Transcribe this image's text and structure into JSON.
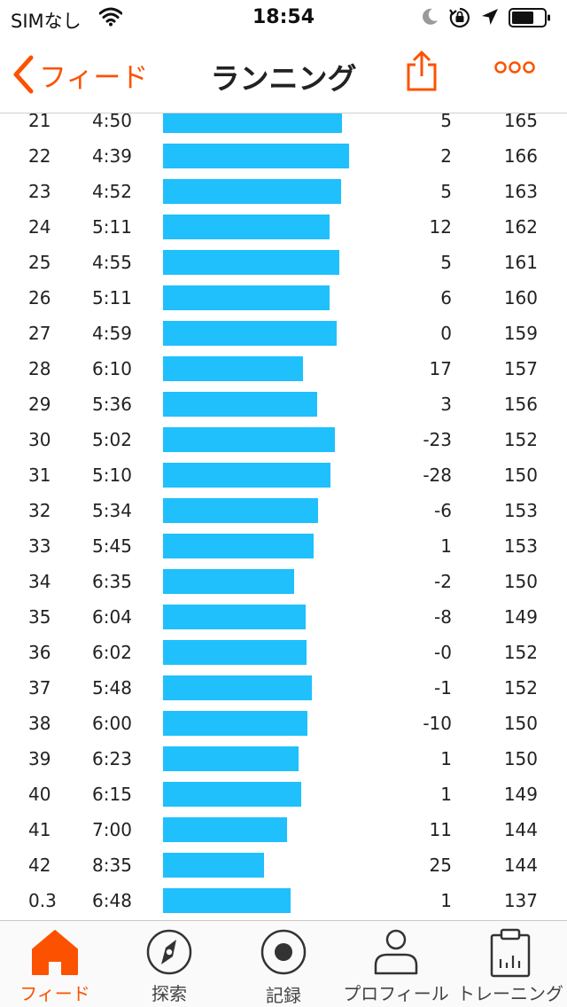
{
  "status_bar": {
    "carrier": "SIMなし",
    "time": "18:54"
  },
  "nav": {
    "back_label": "フィード",
    "title": "ランニング"
  },
  "colors": {
    "accent": "#fc5200",
    "bar": "#1fc0fb"
  },
  "splits": [
    {
      "km": "21",
      "pace": "4:50",
      "pace_sec": 290,
      "elev": "5",
      "hr": "165"
    },
    {
      "km": "22",
      "pace": "4:39",
      "pace_sec": 279,
      "elev": "2",
      "hr": "166"
    },
    {
      "km": "23",
      "pace": "4:52",
      "pace_sec": 292,
      "elev": "5",
      "hr": "163"
    },
    {
      "km": "24",
      "pace": "5:11",
      "pace_sec": 311,
      "elev": "12",
      "hr": "162"
    },
    {
      "km": "25",
      "pace": "4:55",
      "pace_sec": 295,
      "elev": "5",
      "hr": "161"
    },
    {
      "km": "26",
      "pace": "5:11",
      "pace_sec": 311,
      "elev": "6",
      "hr": "160"
    },
    {
      "km": "27",
      "pace": "4:59",
      "pace_sec": 299,
      "elev": "0",
      "hr": "159"
    },
    {
      "km": "28",
      "pace": "6:10",
      "pace_sec": 370,
      "elev": "17",
      "hr": "157"
    },
    {
      "km": "29",
      "pace": "5:36",
      "pace_sec": 336,
      "elev": "3",
      "hr": "156"
    },
    {
      "km": "30",
      "pace": "5:02",
      "pace_sec": 302,
      "elev": "-23",
      "hr": "152"
    },
    {
      "km": "31",
      "pace": "5:10",
      "pace_sec": 310,
      "elev": "-28",
      "hr": "150"
    },
    {
      "km": "32",
      "pace": "5:34",
      "pace_sec": 334,
      "elev": "-6",
      "hr": "153"
    },
    {
      "km": "33",
      "pace": "5:45",
      "pace_sec": 345,
      "elev": "1",
      "hr": "153"
    },
    {
      "km": "34",
      "pace": "6:35",
      "pace_sec": 395,
      "elev": "-2",
      "hr": "150"
    },
    {
      "km": "35",
      "pace": "6:04",
      "pace_sec": 364,
      "elev": "-8",
      "hr": "149"
    },
    {
      "km": "36",
      "pace": "6:02",
      "pace_sec": 362,
      "elev": "-0",
      "hr": "152"
    },
    {
      "km": "37",
      "pace": "5:48",
      "pace_sec": 348,
      "elev": "-1",
      "hr": "152"
    },
    {
      "km": "38",
      "pace": "6:00",
      "pace_sec": 360,
      "elev": "-10",
      "hr": "150"
    },
    {
      "km": "39",
      "pace": "6:23",
      "pace_sec": 383,
      "elev": "1",
      "hr": "150"
    },
    {
      "km": "40",
      "pace": "6:15",
      "pace_sec": 375,
      "elev": "1",
      "hr": "149"
    },
    {
      "km": "41",
      "pace": "7:00",
      "pace_sec": 420,
      "elev": "11",
      "hr": "144"
    },
    {
      "km": "42",
      "pace": "8:35",
      "pace_sec": 515,
      "elev": "25",
      "hr": "144"
    },
    {
      "km": "0.3",
      "pace": "6:48",
      "pace_sec": 408,
      "elev": "1",
      "hr": "137"
    }
  ],
  "tabs": [
    {
      "label": "フィード",
      "icon": "home-icon",
      "active": true
    },
    {
      "label": "探索",
      "icon": "compass-icon",
      "active": false
    },
    {
      "label": "記録",
      "icon": "record-icon",
      "active": false
    },
    {
      "label": "プロフィール",
      "icon": "profile-icon",
      "active": false
    },
    {
      "label": "トレーニング",
      "icon": "training-icon",
      "active": false
    }
  ]
}
